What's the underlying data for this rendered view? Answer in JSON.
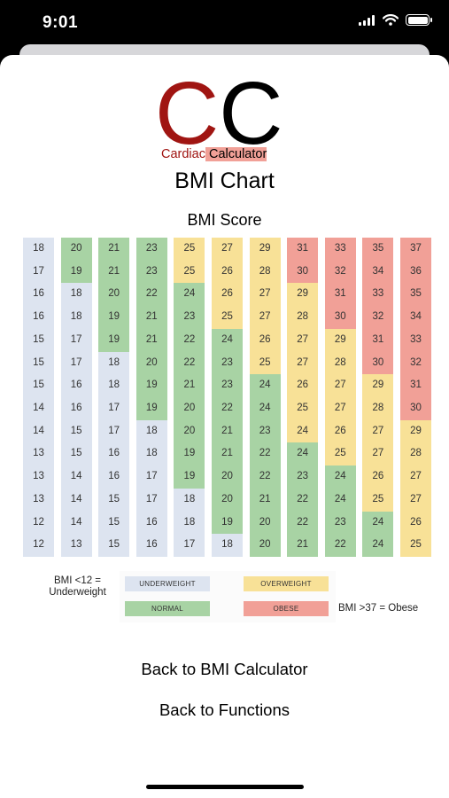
{
  "status": {
    "time": "9:01"
  },
  "icons": {
    "signal": "signal-icon",
    "wifi": "wifi-icon",
    "battery": "battery-icon"
  },
  "logo": {
    "letter_1": "C",
    "letter_2": "C",
    "sub_1": "Cardiac",
    "sub_2": " Calculator"
  },
  "page_title": "BMI Chart",
  "colors": {
    "underweight": "#dde4f0",
    "normal": "#a8d3a4",
    "overweight": "#f8e197",
    "obese": "#f1a097",
    "logo_red": "#a01512"
  },
  "chart_data": {
    "type": "table",
    "title": "BMI Score",
    "columns": [
      {
        "values": [
          18,
          17,
          16,
          16,
          15,
          15,
          15,
          14,
          14,
          13,
          13,
          13,
          12,
          12
        ],
        "classes": [
          "u",
          "u",
          "u",
          "u",
          "u",
          "u",
          "u",
          "u",
          "u",
          "u",
          "u",
          "u",
          "u",
          "u"
        ]
      },
      {
        "values": [
          20,
          19,
          18,
          18,
          17,
          17,
          16,
          16,
          15,
          15,
          14,
          14,
          14,
          13
        ],
        "classes": [
          "n",
          "n",
          "u",
          "u",
          "u",
          "u",
          "u",
          "u",
          "u",
          "u",
          "u",
          "u",
          "u",
          "u"
        ]
      },
      {
        "values": [
          21,
          21,
          20,
          19,
          19,
          18,
          18,
          17,
          17,
          16,
          16,
          15,
          15,
          15
        ],
        "classes": [
          "n",
          "n",
          "n",
          "n",
          "n",
          "u",
          "u",
          "u",
          "u",
          "u",
          "u",
          "u",
          "u",
          "u"
        ]
      },
      {
        "values": [
          23,
          23,
          22,
          21,
          21,
          20,
          19,
          19,
          18,
          18,
          17,
          17,
          16,
          16
        ],
        "classes": [
          "n",
          "n",
          "n",
          "n",
          "n",
          "n",
          "n",
          "n",
          "u",
          "u",
          "u",
          "u",
          "u",
          "u"
        ]
      },
      {
        "values": [
          25,
          25,
          24,
          23,
          22,
          22,
          21,
          20,
          20,
          19,
          19,
          18,
          18,
          17
        ],
        "classes": [
          "o",
          "o",
          "n",
          "n",
          "n",
          "n",
          "n",
          "n",
          "n",
          "n",
          "n",
          "u",
          "u",
          "u"
        ]
      },
      {
        "values": [
          27,
          26,
          26,
          25,
          24,
          23,
          23,
          22,
          21,
          21,
          20,
          20,
          19,
          18
        ],
        "classes": [
          "o",
          "o",
          "o",
          "o",
          "n",
          "n",
          "n",
          "n",
          "n",
          "n",
          "n",
          "n",
          "n",
          "u"
        ]
      },
      {
        "values": [
          29,
          28,
          27,
          27,
          26,
          25,
          24,
          24,
          23,
          22,
          22,
          21,
          20,
          20
        ],
        "classes": [
          "o",
          "o",
          "o",
          "o",
          "o",
          "o",
          "n",
          "n",
          "n",
          "n",
          "n",
          "n",
          "n",
          "n"
        ]
      },
      {
        "values": [
          31,
          30,
          29,
          28,
          27,
          27,
          26,
          25,
          24,
          24,
          23,
          22,
          22,
          21
        ],
        "classes": [
          "b",
          "b",
          "o",
          "o",
          "o",
          "o",
          "o",
          "o",
          "o",
          "n",
          "n",
          "n",
          "n",
          "n"
        ]
      },
      {
        "values": [
          33,
          32,
          31,
          30,
          29,
          28,
          27,
          27,
          26,
          25,
          24,
          24,
          23,
          22
        ],
        "classes": [
          "b",
          "b",
          "b",
          "b",
          "o",
          "o",
          "o",
          "o",
          "o",
          "o",
          "n",
          "n",
          "n",
          "n"
        ]
      },
      {
        "values": [
          35,
          34,
          33,
          32,
          31,
          30,
          29,
          28,
          27,
          27,
          26,
          25,
          24,
          24
        ],
        "classes": [
          "b",
          "b",
          "b",
          "b",
          "b",
          "b",
          "o",
          "o",
          "o",
          "o",
          "o",
          "o",
          "n",
          "n"
        ]
      },
      {
        "values": [
          37,
          36,
          35,
          34,
          33,
          32,
          31,
          30,
          29,
          28,
          27,
          27,
          26,
          25
        ],
        "classes": [
          "b",
          "b",
          "b",
          "b",
          "b",
          "b",
          "b",
          "b",
          "o",
          "o",
          "o",
          "o",
          "o",
          "o"
        ]
      }
    ]
  },
  "legend": {
    "underweight": "UNDERWEIGHT",
    "overweight": "OVERWEIGHT",
    "normal": "NORMAL",
    "obese": "OBESE",
    "note_left_1": "BMI <12 =",
    "note_left_2": "Underweight",
    "note_right": "BMI >37 = Obese"
  },
  "links": {
    "back_calculator": "Back to BMI Calculator",
    "back_functions": "Back to Functions"
  }
}
